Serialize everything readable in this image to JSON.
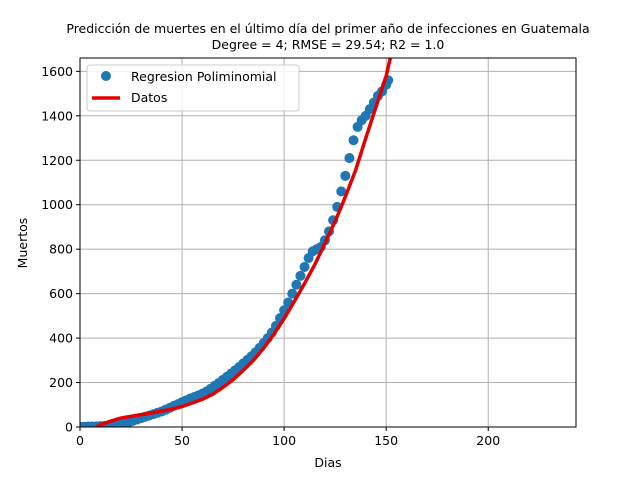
{
  "chart_data": {
    "type": "scatter",
    "title": "Predicción de muertes en el último día del primer año de infecciones en  Guatemala",
    "subtitle": "Degree = 4; RMSE = 29.54; R2 = 1.0",
    "xlabel": "Dias",
    "ylabel": "Muertos",
    "xlim": [
      0,
      243
    ],
    "ylim": [
      0,
      1660
    ],
    "x_ticks": [
      0,
      50,
      100,
      150,
      200
    ],
    "y_ticks": [
      0,
      200,
      400,
      600,
      800,
      1000,
      1200,
      1400,
      1600
    ],
    "grid": true,
    "legend_position": "top-left",
    "colors": {
      "scatter": "#1f77b4",
      "line": "#e50000",
      "grid": "#b0b0b0"
    },
    "series": [
      {
        "name": "Regresion Poliminomial",
        "kind": "scatter",
        "x": [
          0,
          2,
          4,
          6,
          8,
          10,
          12,
          14,
          16,
          18,
          20,
          22,
          24,
          26,
          28,
          30,
          32,
          34,
          36,
          38,
          40,
          42,
          44,
          46,
          48,
          50,
          52,
          54,
          56,
          58,
          60,
          62,
          64,
          66,
          68,
          70,
          72,
          74,
          76,
          78,
          80,
          82,
          84,
          86,
          88,
          90,
          92,
          94,
          96,
          98,
          100,
          102,
          104,
          106,
          108,
          110,
          112,
          114,
          116,
          118,
          120,
          122,
          124,
          126,
          128,
          130,
          132,
          134,
          136,
          138,
          140,
          142,
          144,
          146,
          148,
          150,
          151
        ],
        "y": [
          1,
          1,
          2,
          2,
          3,
          4,
          5,
          6,
          8,
          10,
          13,
          18,
          22,
          28,
          34,
          40,
          46,
          52,
          58,
          64,
          70,
          78,
          86,
          95,
          103,
          112,
          120,
          128,
          135,
          142,
          150,
          160,
          172,
          185,
          198,
          212,
          226,
          240,
          255,
          270,
          286,
          302,
          318,
          336,
          356,
          378,
          400,
          425,
          455,
          490,
          525,
          560,
          600,
          640,
          680,
          720,
          760,
          790,
          800,
          810,
          840,
          880,
          930,
          990,
          1060,
          1130,
          1210,
          1290,
          1350,
          1380,
          1400,
          1430,
          1460,
          1490,
          1510,
          1540,
          1560
        ]
      },
      {
        "name": "Datos",
        "kind": "line",
        "x": [
          8,
          10,
          15,
          20,
          25,
          30,
          35,
          40,
          45,
          50,
          55,
          60,
          65,
          70,
          75,
          80,
          85,
          90,
          95,
          100,
          105,
          110,
          115,
          120,
          125,
          130,
          135,
          140,
          145,
          150,
          152
        ],
        "y": [
          0,
          10,
          26,
          40,
          48,
          56,
          63,
          72,
          80,
          92,
          108,
          125,
          147,
          178,
          213,
          255,
          300,
          355,
          418,
          487,
          565,
          645,
          730,
          825,
          925,
          1035,
          1155,
          1300,
          1440,
          1580,
          1660
        ]
      }
    ]
  }
}
